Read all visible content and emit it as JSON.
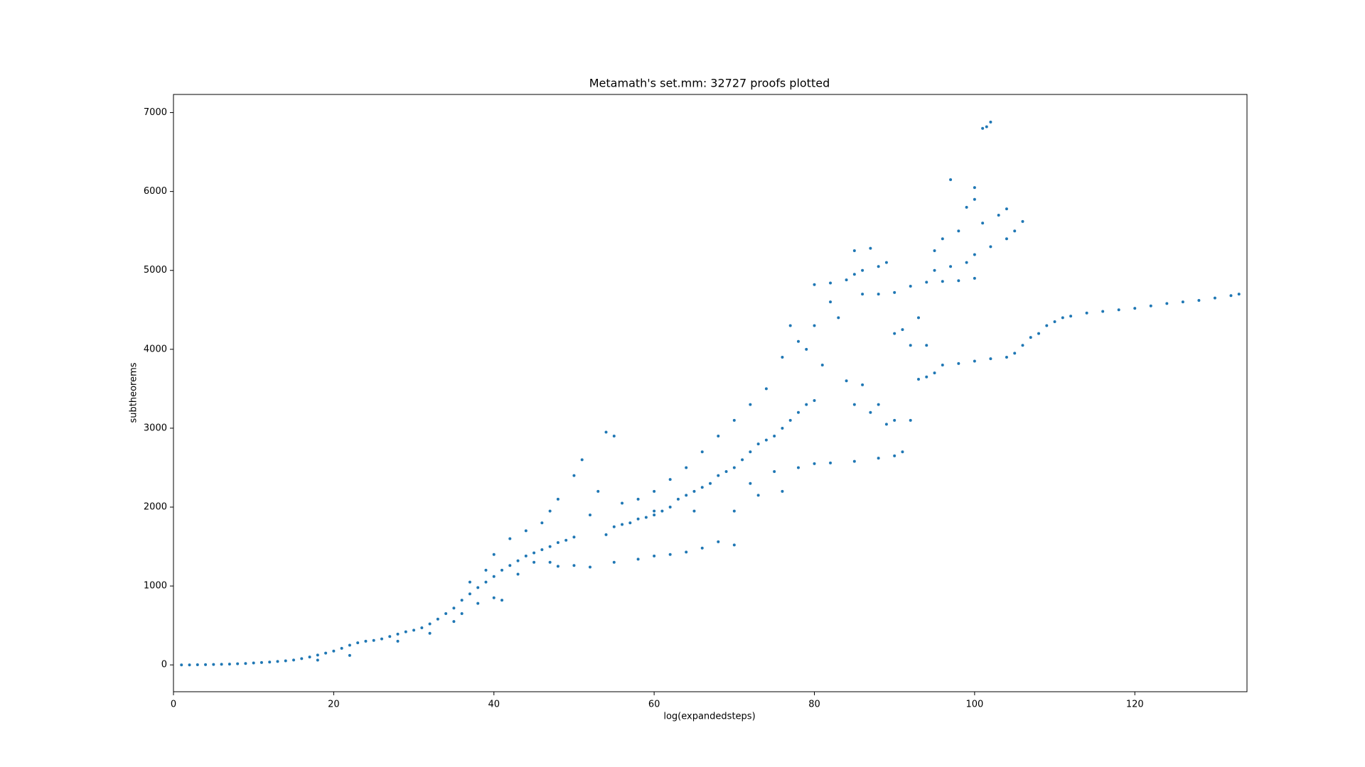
{
  "chart_data": {
    "type": "scatter",
    "title": "Metamath's set.mm: 32727 proofs plotted",
    "x_label": "log(expandedsteps)",
    "y_label": "subtheorems",
    "color": "#1f77b4",
    "xlim": [
      0,
      134
    ],
    "ylim": [
      -340,
      7230
    ],
    "xticks": [
      0,
      20,
      40,
      60,
      80,
      100,
      120
    ],
    "yticks": [
      0,
      1000,
      2000,
      3000,
      4000,
      5000,
      6000,
      7000
    ],
    "x": [
      1,
      2,
      3,
      4,
      5,
      6,
      7,
      8,
      9,
      10,
      11,
      12,
      13,
      14,
      15,
      16,
      17,
      18,
      19,
      20,
      21,
      22,
      23,
      24,
      25,
      26,
      27,
      28,
      29,
      30,
      31,
      32,
      33,
      34,
      35,
      36,
      37,
      38,
      39,
      40,
      41,
      42,
      43,
      44,
      45,
      46,
      47,
      48,
      49,
      50,
      18,
      22,
      28,
      32,
      35,
      36,
      38,
      40,
      41,
      37,
      39,
      40,
      42,
      44,
      46,
      47,
      48,
      50,
      51,
      53,
      54,
      55,
      52,
      45,
      43,
      47,
      48,
      50,
      52,
      55,
      58,
      60,
      62,
      64,
      66,
      68,
      70,
      54,
      55,
      56,
      57,
      58,
      59,
      60,
      61,
      62,
      63,
      64,
      65,
      66,
      67,
      68,
      69,
      70,
      71,
      72,
      73,
      74,
      75,
      76,
      77,
      78,
      79,
      80,
      56,
      58,
      60,
      62,
      64,
      66,
      68,
      70,
      72,
      74,
      76,
      78,
      80,
      82,
      83,
      77,
      79,
      81,
      84,
      86,
      88,
      90,
      92,
      85,
      87,
      89,
      60,
      65,
      70,
      72,
      75,
      78,
      80,
      82,
      85,
      88,
      90,
      91,
      76,
      73,
      80,
      82,
      84,
      85,
      86,
      88,
      89,
      85,
      87,
      86,
      88,
      90,
      92,
      94,
      96,
      98,
      100,
      95,
      97,
      99,
      100,
      102,
      104,
      105,
      106,
      96,
      98,
      99,
      100,
      101,
      103,
      104,
      97,
      100,
      101,
      101.5,
      102,
      95,
      93,
      91,
      90,
      93,
      94,
      95,
      96,
      98,
      100,
      102,
      104,
      105,
      106,
      107,
      108,
      109,
      110,
      111,
      112,
      114,
      116,
      118,
      120,
      122,
      124,
      126,
      128,
      130,
      132,
      133,
      92,
      94
    ],
    "values": [
      0,
      0,
      2,
      3,
      5,
      8,
      10,
      14,
      18,
      24,
      30,
      36,
      44,
      52,
      62,
      80,
      100,
      125,
      150,
      175,
      210,
      250,
      280,
      300,
      310,
      330,
      360,
      390,
      420,
      440,
      470,
      520,
      580,
      650,
      720,
      820,
      900,
      980,
      1050,
      1120,
      1200,
      1260,
      1320,
      1380,
      1420,
      1460,
      1500,
      1550,
      1580,
      1620,
      60,
      120,
      300,
      400,
      550,
      650,
      780,
      850,
      820,
      1050,
      1200,
      1400,
      1600,
      1700,
      1800,
      1950,
      2100,
      2400,
      2600,
      2200,
      2950,
      2900,
      1900,
      1300,
      1150,
      1300,
      1250,
      1260,
      1240,
      1300,
      1340,
      1380,
      1400,
      1430,
      1480,
      1560,
      1520,
      1650,
      1750,
      1780,
      1800,
      1850,
      1870,
      1900,
      1950,
      2000,
      2100,
      2150,
      2200,
      2250,
      2300,
      2400,
      2450,
      2500,
      2600,
      2700,
      2800,
      2850,
      2900,
      3000,
      3100,
      3200,
      3300,
      3350,
      2050,
      2100,
      2200,
      2350,
      2500,
      2700,
      2900,
      3100,
      3300,
      3500,
      3900,
      4100,
      4300,
      4600,
      4400,
      4300,
      4000,
      3800,
      3600,
      3550,
      3300,
      3100,
      3100,
      3300,
      3200,
      3050,
      1950,
      1950,
      1950,
      2300,
      2450,
      2500,
      2550,
      2560,
      2580,
      2620,
      2650,
      2700,
      2200,
      2150,
      4820,
      4840,
      4880,
      4950,
      5000,
      5050,
      5100,
      5250,
      5280,
      4700,
      4700,
      4720,
      4800,
      4850,
      4860,
      4870,
      4900,
      5000,
      5050,
      5100,
      5200,
      5300,
      5400,
      5500,
      5620,
      5400,
      5500,
      5800,
      5900,
      5600,
      5700,
      5780,
      6150,
      6050,
      6800,
      6820,
      6880,
      5250,
      4400,
      4250,
      4200,
      3620,
      3650,
      3700,
      3800,
      3820,
      3850,
      3880,
      3900,
      3950,
      4050,
      4150,
      4200,
      4300,
      4350,
      4400,
      4420,
      4460,
      4480,
      4500,
      4520,
      4550,
      4580,
      4600,
      4620,
      4650,
      4680,
      4700,
      4050,
      4050
    ]
  }
}
